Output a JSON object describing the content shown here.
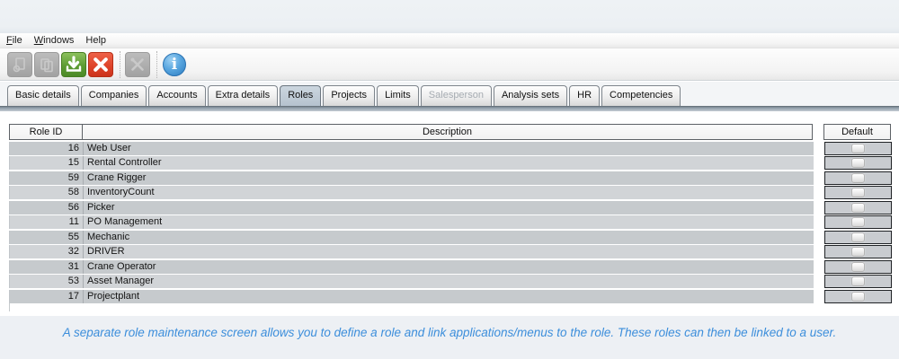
{
  "menu": {
    "items": [
      {
        "label": "File",
        "underline": "F"
      },
      {
        "label": "Windows",
        "underline": "W"
      },
      {
        "label": "Help",
        "underline": ""
      }
    ]
  },
  "toolbar": {
    "buttons": [
      {
        "name": "attach",
        "icon": "attachment-icon",
        "state": "disabled"
      },
      {
        "name": "copy",
        "icon": "copy-icon",
        "state": "disabled"
      },
      {
        "name": "save",
        "icon": "save-download-icon",
        "state": "enabled",
        "color": "#5d9c34"
      },
      {
        "name": "delete",
        "icon": "delete-x-icon",
        "state": "enabled",
        "color": "#dd4228"
      },
      {
        "name": "tools",
        "icon": "tools-icon",
        "state": "disabled"
      },
      {
        "name": "info",
        "icon": "info-icon",
        "state": "enabled",
        "color": "#3a86c8",
        "glyph": "i"
      }
    ]
  },
  "tabs": [
    {
      "label": "Basic details",
      "state": "normal"
    },
    {
      "label": "Companies",
      "state": "normal"
    },
    {
      "label": "Accounts",
      "state": "normal"
    },
    {
      "label": "Extra details",
      "state": "normal"
    },
    {
      "label": "Roles",
      "state": "selected"
    },
    {
      "label": "Projects",
      "state": "normal"
    },
    {
      "label": "Limits",
      "state": "normal"
    },
    {
      "label": "Salesperson",
      "state": "disabled"
    },
    {
      "label": "Analysis sets",
      "state": "normal"
    },
    {
      "label": "HR",
      "state": "normal"
    },
    {
      "label": "Competencies",
      "state": "normal"
    }
  ],
  "table": {
    "columns": {
      "role_id": "Role ID",
      "description": "Description",
      "default": "Default"
    },
    "rows": [
      {
        "role_id": "16",
        "description": "Web User",
        "default": false
      },
      {
        "role_id": "15",
        "description": "Rental Controller",
        "default": false
      },
      {
        "role_id": "59",
        "description": "Crane Rigger",
        "default": false
      },
      {
        "role_id": "58",
        "description": "InventoryCount",
        "default": false
      },
      {
        "role_id": "56",
        "description": "Picker",
        "default": false
      },
      {
        "role_id": "11",
        "description": "PO Management",
        "default": false
      },
      {
        "role_id": "55",
        "description": "Mechanic",
        "default": false
      },
      {
        "role_id": "32",
        "description": "DRIVER",
        "default": false
      },
      {
        "role_id": "31",
        "description": "Crane Operator",
        "default": false
      },
      {
        "role_id": "53",
        "description": "Asset Manager",
        "default": false
      },
      {
        "role_id": "17",
        "description": "Projectplant",
        "default": false
      }
    ]
  },
  "footer": {
    "caption": "A separate role maintenance screen allows you to define a role and link applications/menus to the role. These roles can then be linked to a user."
  },
  "colors": {
    "accent_green": "#5d9c34",
    "accent_red": "#dd4228",
    "accent_blue": "#3a86c8",
    "selected_tab": "#b5c2ce",
    "row_gray": "#c9ccd0",
    "band_slate": "#8e9ca8",
    "footer_text": "#3c8edb",
    "footer_bg": "#edf0f4",
    "top_strip_bg": "#eef2f5"
  }
}
